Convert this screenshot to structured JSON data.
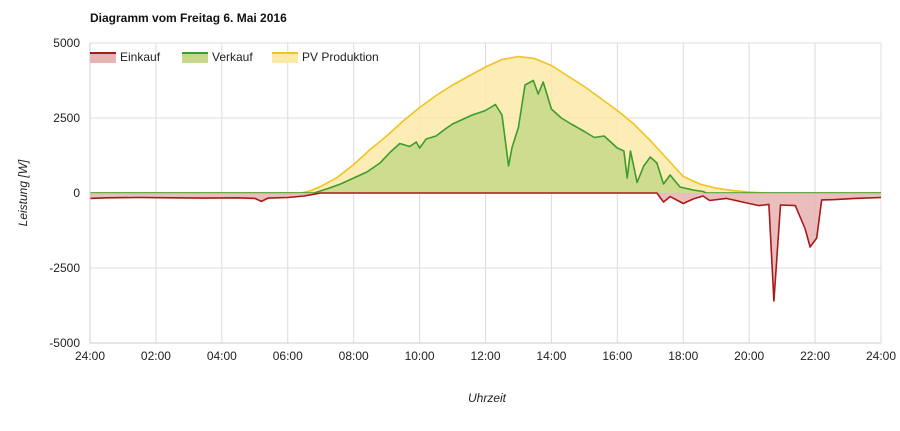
{
  "chart_data": {
    "type": "area",
    "title": "Diagramm vom Freitag  6. Mai 2016",
    "xlabel": "Uhrzeit",
    "ylabel": "Leistung [W]",
    "xlim": [
      0,
      24
    ],
    "ylim": [
      -5000,
      5000
    ],
    "x_ticks": [
      0,
      2,
      4,
      6,
      8,
      10,
      12,
      14,
      16,
      18,
      20,
      22,
      24
    ],
    "x_tick_labels": [
      "24:00",
      "02:00",
      "04:00",
      "06:00",
      "08:00",
      "10:00",
      "12:00",
      "14:00",
      "16:00",
      "18:00",
      "20:00",
      "22:00",
      "24:00"
    ],
    "y_ticks": [
      5000,
      2500,
      0,
      -2500,
      -5000
    ],
    "y_tick_labels": [
      "5000",
      "2500",
      "0",
      "-2500",
      "-5000"
    ],
    "grid": true,
    "legend_position": "top-left",
    "series": [
      {
        "name": "PV Produktion",
        "line_color": "#f2c31f",
        "fill_color": "#fce9a8",
        "points": [
          [
            0,
            0
          ],
          [
            6.4,
            0
          ],
          [
            6.7,
            80
          ],
          [
            7.0,
            220
          ],
          [
            7.5,
            520
          ],
          [
            8.0,
            950
          ],
          [
            8.5,
            1450
          ],
          [
            9.0,
            1900
          ],
          [
            9.5,
            2400
          ],
          [
            10.0,
            2850
          ],
          [
            10.5,
            3250
          ],
          [
            11.0,
            3600
          ],
          [
            11.5,
            3900
          ],
          [
            12.0,
            4200
          ],
          [
            12.5,
            4450
          ],
          [
            13.0,
            4550
          ],
          [
            13.5,
            4480
          ],
          [
            14.0,
            4250
          ],
          [
            14.5,
            3900
          ],
          [
            15.0,
            3550
          ],
          [
            15.5,
            3150
          ],
          [
            16.0,
            2750
          ],
          [
            16.5,
            2300
          ],
          [
            17.0,
            1750
          ],
          [
            17.5,
            1150
          ],
          [
            18.0,
            550
          ],
          [
            18.5,
            300
          ],
          [
            19.0,
            160
          ],
          [
            19.5,
            80
          ],
          [
            20.0,
            30
          ],
          [
            20.5,
            0
          ],
          [
            24.0,
            0
          ]
        ]
      },
      {
        "name": "Verkauf",
        "line_color": "#3c9c2c",
        "fill_color": "#c6d98a",
        "points": [
          [
            0,
            0
          ],
          [
            6.8,
            0
          ],
          [
            7.0,
            70
          ],
          [
            7.3,
            180
          ],
          [
            7.6,
            300
          ],
          [
            8.0,
            500
          ],
          [
            8.4,
            700
          ],
          [
            8.8,
            1000
          ],
          [
            9.1,
            1350
          ],
          [
            9.4,
            1650
          ],
          [
            9.7,
            1550
          ],
          [
            9.9,
            1700
          ],
          [
            10.0,
            1500
          ],
          [
            10.2,
            1800
          ],
          [
            10.5,
            1900
          ],
          [
            10.8,
            2150
          ],
          [
            11.0,
            2300
          ],
          [
            11.3,
            2450
          ],
          [
            11.6,
            2600
          ],
          [
            12.0,
            2750
          ],
          [
            12.3,
            2950
          ],
          [
            12.5,
            2600
          ],
          [
            12.7,
            900
          ],
          [
            12.8,
            1500
          ],
          [
            13.0,
            2200
          ],
          [
            13.2,
            3600
          ],
          [
            13.45,
            3750
          ],
          [
            13.6,
            3300
          ],
          [
            13.75,
            3700
          ],
          [
            14.0,
            2800
          ],
          [
            14.3,
            2500
          ],
          [
            14.6,
            2300
          ],
          [
            15.0,
            2050
          ],
          [
            15.3,
            1850
          ],
          [
            15.6,
            1900
          ],
          [
            16.0,
            1500
          ],
          [
            16.2,
            1400
          ],
          [
            16.3,
            500
          ],
          [
            16.4,
            1400
          ],
          [
            16.6,
            350
          ],
          [
            16.8,
            900
          ],
          [
            17.0,
            1200
          ],
          [
            17.2,
            1000
          ],
          [
            17.4,
            300
          ],
          [
            17.6,
            600
          ],
          [
            17.9,
            200
          ],
          [
            18.3,
            100
          ],
          [
            18.6,
            50
          ],
          [
            18.7,
            0
          ],
          [
            24.0,
            0
          ]
        ]
      },
      {
        "name": "Einkauf",
        "line_color": "#a8191a",
        "fill_color": "#e8b3b3",
        "points": [
          [
            0,
            -180
          ],
          [
            0.5,
            -160
          ],
          [
            1.5,
            -150
          ],
          [
            2.5,
            -160
          ],
          [
            3.5,
            -170
          ],
          [
            4.5,
            -160
          ],
          [
            5.0,
            -180
          ],
          [
            5.2,
            -280
          ],
          [
            5.4,
            -170
          ],
          [
            6.0,
            -150
          ],
          [
            6.5,
            -100
          ],
          [
            6.8,
            -40
          ],
          [
            7.0,
            0
          ],
          [
            16.5,
            0
          ],
          [
            17.2,
            0
          ],
          [
            17.4,
            -300
          ],
          [
            17.6,
            -120
          ],
          [
            18.0,
            -350
          ],
          [
            18.3,
            -200
          ],
          [
            18.6,
            -100
          ],
          [
            18.8,
            -250
          ],
          [
            19.3,
            -180
          ],
          [
            20.0,
            -350
          ],
          [
            20.3,
            -420
          ],
          [
            20.6,
            -380
          ],
          [
            20.75,
            -3600
          ],
          [
            20.95,
            -400
          ],
          [
            21.4,
            -420
          ],
          [
            21.7,
            -1200
          ],
          [
            21.85,
            -1800
          ],
          [
            22.05,
            -1500
          ],
          [
            22.2,
            -230
          ],
          [
            22.6,
            -220
          ],
          [
            23.2,
            -180
          ],
          [
            24.0,
            -150
          ]
        ]
      }
    ]
  }
}
